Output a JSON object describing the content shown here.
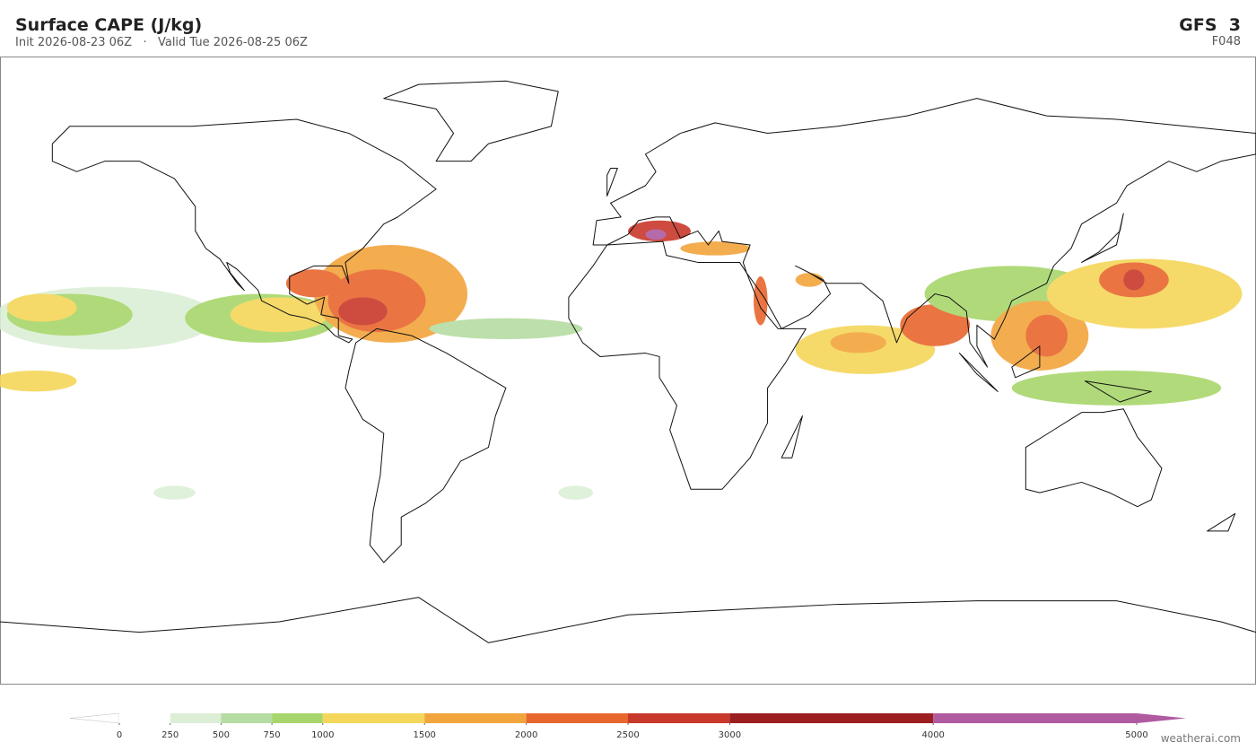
{
  "header": {
    "title": "Surface CAPE  (J/kg)",
    "subtitle": "Init 2026-08-23 06Z   ·   Valid Tue 2026-08-25 06Z",
    "model": "GFS  3",
    "forecast_hour": "F048"
  },
  "colorbar": {
    "ticks": [
      0,
      250,
      500,
      750,
      1000,
      1500,
      2000,
      2500,
      3000,
      4000,
      5000
    ],
    "colors": [
      "#ffffff",
      "#dcefd6",
      "#b5dca3",
      "#a8d66c",
      "#f4d75a",
      "#f2a53d",
      "#e8672f",
      "#c8392b",
      "#9b1f20",
      "#b05aa0"
    ],
    "under_color": "#ffffff",
    "over_color": "#b05aa0"
  },
  "footer": {
    "credit": "weatherai.com"
  }
}
